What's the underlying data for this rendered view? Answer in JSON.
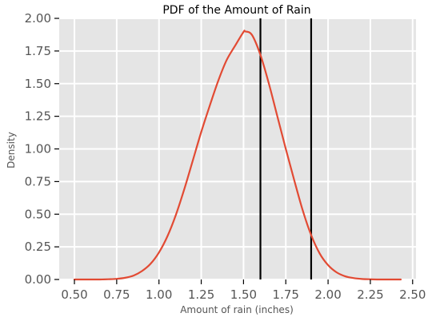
{
  "chart_data": {
    "type": "line",
    "title": "PDF of the Amount of Rain",
    "xlabel": "Amount of rain (inches)",
    "ylabel": "Density",
    "xlim": [
      0.41,
      2.52
    ],
    "ylim": [
      0.0,
      2.0
    ],
    "xticks": [
      0.5,
      0.75,
      1.0,
      1.25,
      1.5,
      1.75,
      2.0,
      2.25,
      2.5
    ],
    "xtick_labels": [
      "0.50",
      "0.75",
      "1.00",
      "1.25",
      "1.50",
      "1.75",
      "2.00",
      "2.25",
      "2.50"
    ],
    "yticks": [
      0.0,
      0.25,
      0.5,
      0.75,
      1.0,
      1.25,
      1.5,
      1.75,
      2.0
    ],
    "ytick_labels": [
      "0.00",
      "0.25",
      "0.50",
      "0.75",
      "1.00",
      "1.25",
      "1.50",
      "1.75",
      "2.00"
    ],
    "grid": true,
    "colors": {
      "plot_background": "#e5e5e5",
      "grid": "#ffffff",
      "curve": "#e24a33",
      "vlines": "#000000",
      "tick_text": "#555555"
    },
    "series": [
      {
        "x": [
          0.5,
          0.55,
          0.6,
          0.65,
          0.7,
          0.75,
          0.8,
          0.85,
          0.9,
          0.95,
          1.0,
          1.05,
          1.1,
          1.15,
          1.2,
          1.25,
          1.3,
          1.35,
          1.4,
          1.45,
          1.5,
          1.51,
          1.55,
          1.6,
          1.65,
          1.7,
          1.75,
          1.8,
          1.85,
          1.9,
          1.95,
          2.0,
          2.05,
          2.1,
          2.15,
          2.2,
          2.25,
          2.3,
          2.35,
          2.4,
          2.43
        ],
        "y": [
          0.0,
          0.0,
          0.0,
          0.0,
          0.002,
          0.005,
          0.013,
          0.03,
          0.065,
          0.12,
          0.207,
          0.331,
          0.495,
          0.693,
          0.911,
          1.13,
          1.33,
          1.52,
          1.68,
          1.79,
          1.896,
          1.9,
          1.873,
          1.72,
          1.5,
          1.25,
          1.0,
          0.76,
          0.53,
          0.34,
          0.2,
          0.11,
          0.055,
          0.025,
          0.011,
          0.004,
          0.0015,
          0.0,
          0.0,
          0.0,
          0.0
        ]
      }
    ],
    "vlines": [
      1.6,
      1.9
    ]
  }
}
